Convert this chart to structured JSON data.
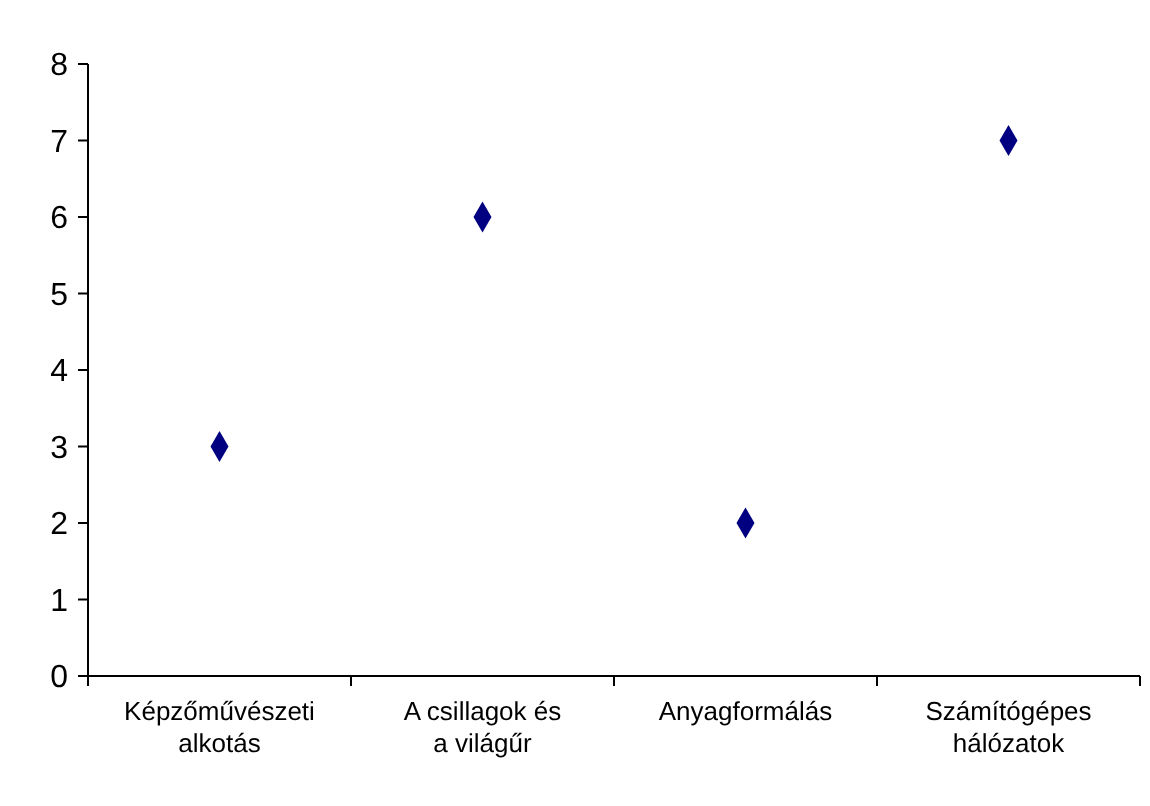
{
  "chart_data": {
    "type": "scatter",
    "categories": [
      "Képzőművészeti alkotás",
      "A csillagok és a világűr",
      "Anyagformálás",
      "Számítógépes hálózatok"
    ],
    "series": [
      {
        "color": "#000080",
        "values": [
          3,
          6,
          2,
          7
        ]
      }
    ],
    "ylim": [
      0,
      8
    ],
    "yticks": [
      0,
      1,
      2,
      3,
      4,
      5,
      6,
      7,
      8
    ],
    "marker": "diamond"
  }
}
